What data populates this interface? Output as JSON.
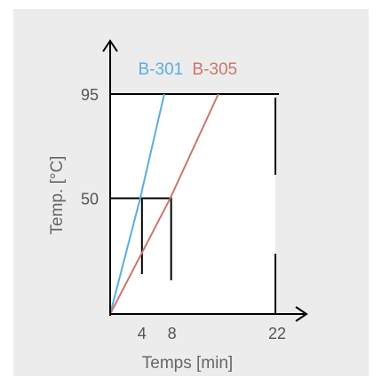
{
  "chart_data": {
    "type": "line",
    "title": "",
    "xlabel": "Temps [min]",
    "ylabel": "Temp. [°C]",
    "x_ticks": [
      4,
      8,
      22
    ],
    "y_ticks": [
      50,
      95
    ],
    "xlim": [
      0,
      22
    ],
    "ylim": [
      0,
      95
    ],
    "grid": false,
    "series": [
      {
        "name": "B-301",
        "color": "#5aaee0",
        "points": [
          [
            0,
            0
          ],
          [
            4,
            50
          ],
          [
            7.2,
            95
          ]
        ]
      },
      {
        "name": "B-305",
        "color": "#c9776e",
        "points": [
          [
            0,
            0
          ],
          [
            8,
            50
          ],
          [
            14.4,
            95
          ]
        ]
      }
    ],
    "guides": {
      "b301_reference_x": 4,
      "b305_reference_x": 8,
      "end_x": 22,
      "levels": [
        50,
        95
      ]
    }
  }
}
